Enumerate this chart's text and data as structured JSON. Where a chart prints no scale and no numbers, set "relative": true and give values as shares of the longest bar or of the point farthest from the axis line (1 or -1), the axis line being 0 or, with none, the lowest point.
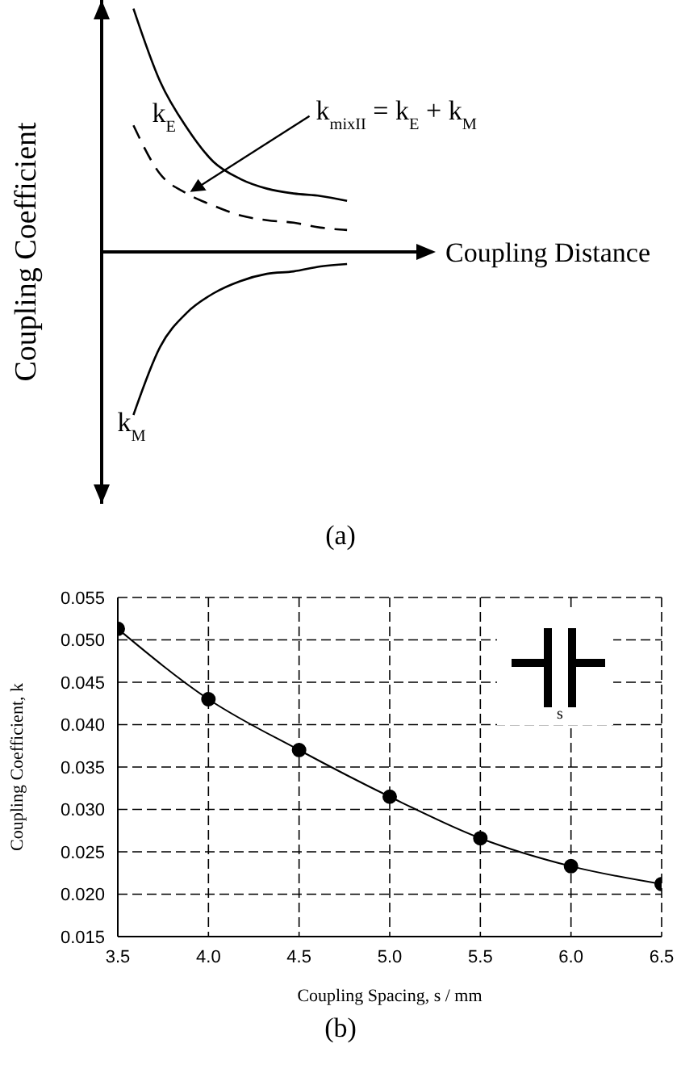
{
  "chart_data": [
    {
      "type": "line",
      "relative": true,
      "xlabel": "Coupling Distance",
      "ylabel": "Coupling Coefficient",
      "categories": [
        null,
        null,
        null,
        null,
        null,
        null,
        null,
        null,
        null
      ],
      "marker": "none",
      "legend": false,
      "series": [
        {
          "name": "k$_{E}$",
          "color": "#000000",
          "line_style": "solid",
          "values": [
            1.0,
            0.7,
            0.51,
            0.37,
            0.3,
            0.26,
            0.24,
            0.23,
            0.21
          ]
        },
        {
          "name": "k$_{mixII}$ = k$_{E}$ + k$_{M}$",
          "color": "#000000",
          "line_style": "dashed",
          "values": [
            0.52,
            0.32,
            0.24,
            0.19,
            0.15,
            0.13,
            0.12,
            0.1,
            0.09
          ]
        },
        {
          "name": "k$_{M}$",
          "color": "#000000",
          "line_style": "solid",
          "values": [
            -0.67,
            -0.39,
            -0.25,
            -0.17,
            -0.12,
            -0.09,
            -0.08,
            -0.06,
            -0.05
          ]
        }
      ],
      "annotations": [
        "(a)"
      ]
    },
    {
      "type": "line",
      "xlabel": "Coupling Spacing, s / mm",
      "ylabel": "Coupling Coefficient, k",
      "marker": "circle",
      "grid": true,
      "legend": false,
      "line_style": "solid",
      "x": [
        3.5,
        4.0,
        4.5,
        5.0,
        5.5,
        6.0,
        6.5
      ],
      "values": [
        0.0513,
        0.043,
        0.037,
        0.0315,
        0.0266,
        0.0233,
        0.0212
      ],
      "color": "#000000",
      "xlim": [
        3.5,
        6.5
      ],
      "xticks": [
        {
          "value": 3.5,
          "label": "3.5"
        },
        {
          "value": 4,
          "label": "4.0"
        },
        {
          "value": 4.5,
          "label": "4.5"
        },
        {
          "value": 5,
          "label": "5.0"
        },
        {
          "value": 5.5,
          "label": "5.5"
        },
        {
          "value": 6,
          "label": "6.0"
        },
        {
          "value": 6.5,
          "label": "6.5"
        }
      ],
      "ylim": [
        0.015,
        0.055
      ],
      "yticks": [
        {
          "value": 0.015,
          "label": "0.015"
        },
        {
          "value": 0.02,
          "label": "0.020"
        },
        {
          "value": 0.025,
          "label": "0.025"
        },
        {
          "value": 0.03,
          "label": "0.030"
        },
        {
          "value": 0.035,
          "label": "0.035"
        },
        {
          "value": 0.04,
          "label": "0.040"
        },
        {
          "value": 0.045,
          "label": "0.045"
        },
        {
          "value": 0.05,
          "label": "0.050"
        },
        {
          "value": 0.055,
          "label": "0.055"
        }
      ],
      "annotations": [
        "s",
        "(b)"
      ]
    }
  ]
}
